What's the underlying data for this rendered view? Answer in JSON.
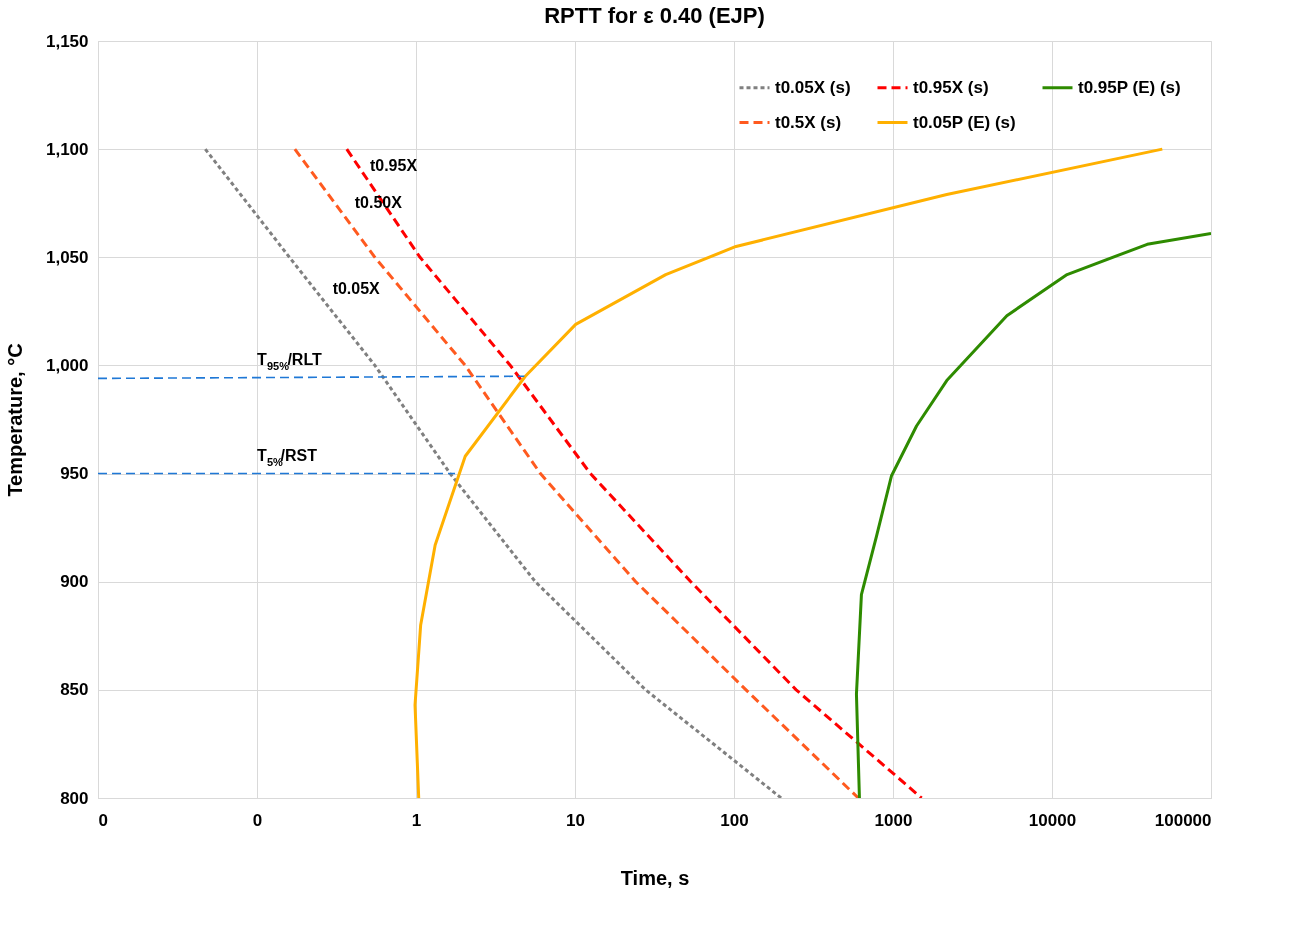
{
  "chart_data": {
    "type": "line",
    "title": "RPTT for ε 0.40 (EJP)",
    "xlabel": "Time, s",
    "ylabel": "Temperature, °C",
    "log": "x",
    "grid": true,
    "legend": "top right",
    "xlim": [
      0.01,
      100000
    ],
    "xticks": [
      {
        "value": 0.01,
        "label": "0"
      },
      {
        "value": 0.1,
        "label": "0"
      },
      1,
      10,
      100,
      1000,
      10000,
      100000
    ],
    "ylim": [
      800,
      1150
    ],
    "yticks": [
      {
        "value": 800,
        "label": "800"
      },
      {
        "value": 850,
        "label": "850"
      },
      {
        "value": 900,
        "label": "900"
      },
      {
        "value": 950,
        "label": "950"
      },
      {
        "value": 1000,
        "label": "1,000"
      },
      {
        "value": 1050,
        "label": "1,050"
      },
      {
        "value": 1100,
        "label": "1,100"
      },
      {
        "value": 1150,
        "label": "1,150"
      }
    ],
    "series": [
      {
        "name": "t0.05X (s)",
        "color": "#808080",
        "line_style": "dotted",
        "x": [
          0.0473,
          0.16,
          0.551,
          1.64,
          5.63,
          27.8,
          198
        ],
        "values": [
          1100,
          1050,
          1000,
          950,
          900,
          850,
          800
        ]
      },
      {
        "name": "t0.5X (s)",
        "color": "#ff5a1f",
        "line_style": "dashed",
        "x": [
          0.173,
          0.551,
          2.04,
          6.06,
          24.1,
          119,
          605
        ],
        "values": [
          1100,
          1050,
          1000,
          950,
          900,
          850,
          800
        ]
      },
      {
        "name": "t0.95X (s)",
        "color": "#ff0000",
        "line_style": "dashed",
        "x": [
          0.367,
          1.06,
          3.92,
          12.5,
          53.5,
          246,
          1514
        ],
        "values": [
          1100,
          1050,
          1000,
          950,
          900,
          850,
          800
        ]
      },
      {
        "name": "t0.05P (E) (s)",
        "color": "#ffb000",
        "line_style": "solid",
        "x": [
          1.04,
          0.986,
          1.07,
          1.32,
          2.04,
          4.87,
          10.1,
          37.2,
          103,
          2178,
          49400
        ],
        "values": [
          800,
          843,
          880,
          917,
          958,
          995,
          1019,
          1042,
          1055,
          1079,
          1100
        ]
      },
      {
        "name": "t0.95P (E) (s)",
        "color": "#2e8b00",
        "line_style": "solid",
        "x": [
          615,
          589,
          633,
          787,
          979,
          1406,
          2178,
          5200,
          12440,
          39700,
          100000
        ],
        "values": [
          800,
          848,
          894,
          921,
          949,
          972,
          993,
          1023,
          1042,
          1056,
          1061
        ]
      },
      {
        "color": "#1f78d6",
        "line_style": "dashed",
        "x": [
          0.01,
          4.8
        ],
        "values": [
          994,
          995
        ]
      },
      {
        "color": "#1f78d6",
        "line_style": "dashed",
        "x": [
          0.01,
          1.76
        ],
        "values": [
          950,
          950
        ]
      }
    ],
    "annotations": [
      {
        "text": "t0.95X",
        "x": 0.513,
        "y": 1084
      },
      {
        "text": "t0.50X",
        "x": 0.412,
        "y": 1067
      },
      {
        "text": "t0.05X",
        "x": 0.299,
        "y": 1027
      },
      {
        "text": "T$_{95%}$/RLT",
        "x": 0.1,
        "y": 994
      },
      {
        "text": "T$_{5%}$/RST",
        "x": 0.1,
        "y": 950
      }
    ]
  }
}
